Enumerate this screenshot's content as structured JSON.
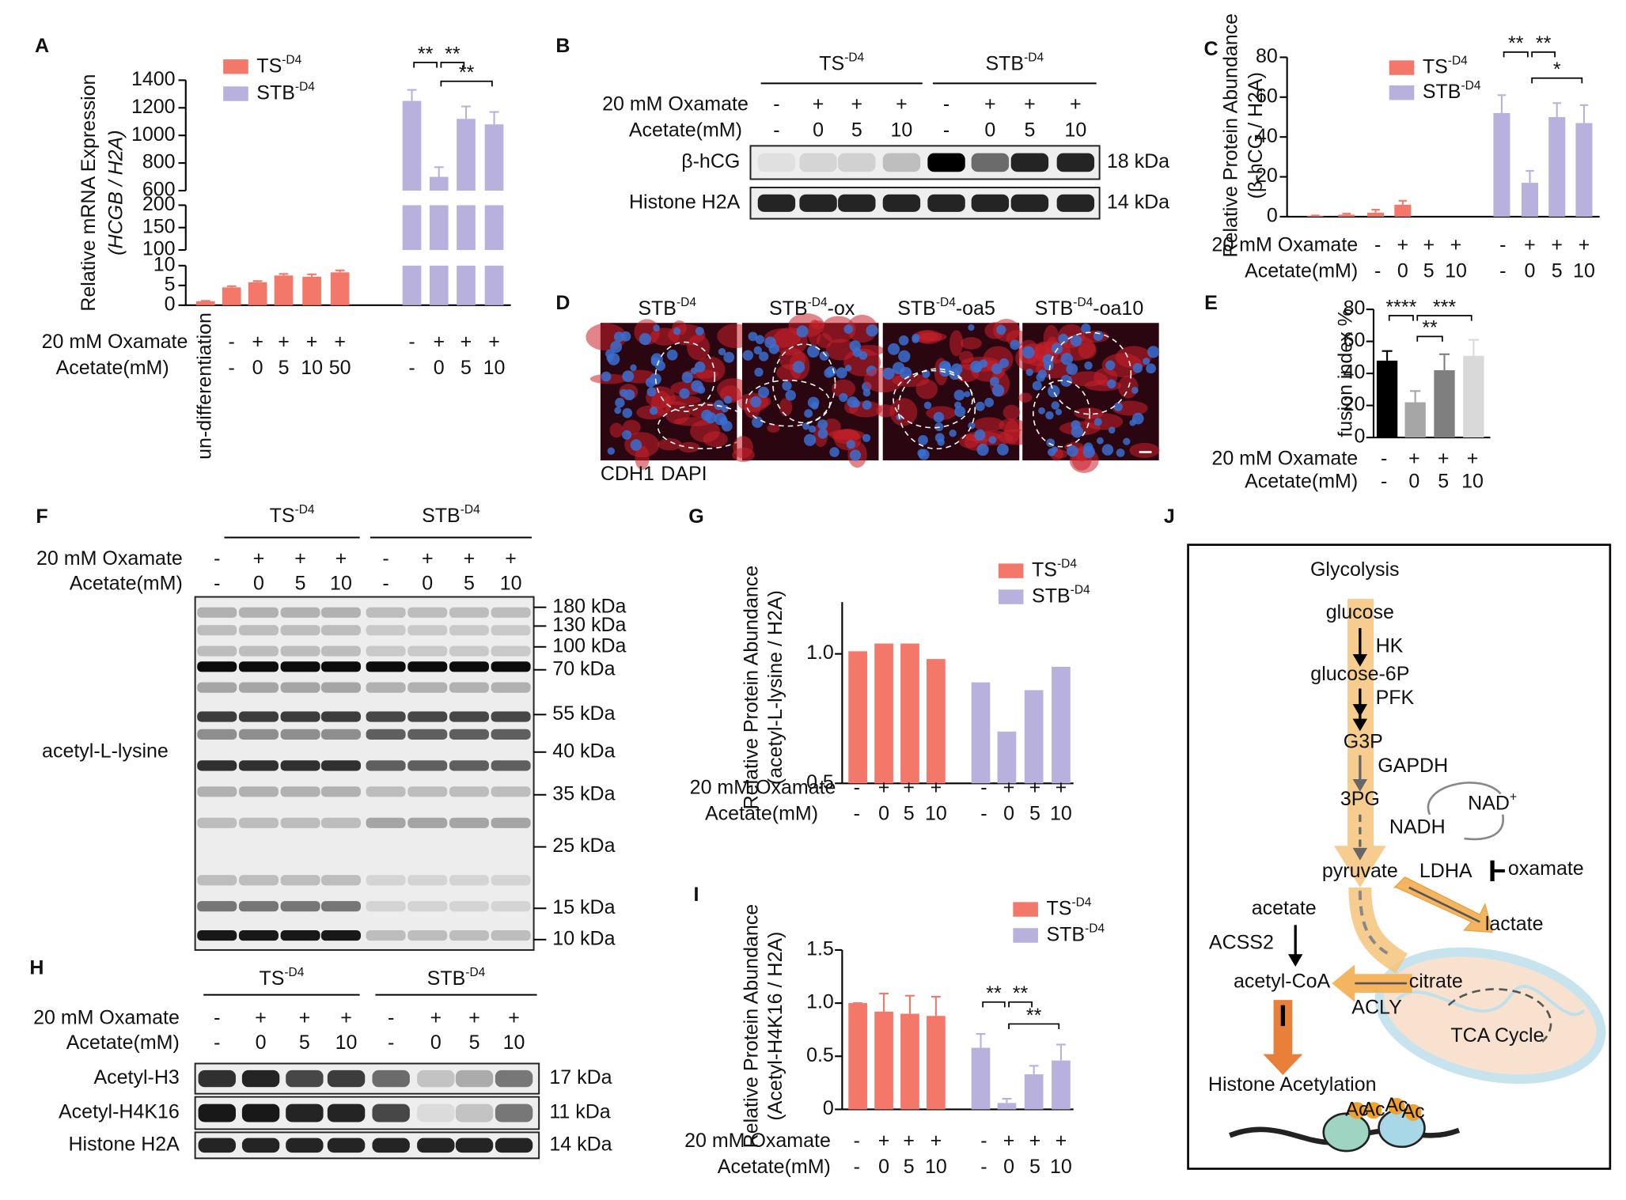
{
  "panel_labels": [
    "A",
    "B",
    "C",
    "D",
    "E",
    "F",
    "G",
    "H",
    "I",
    "J"
  ],
  "chart_data": [
    {
      "type": "bar",
      "y_label": [
        "Relative mRNA Expression",
        "(HCGB / H2A)"
      ],
      "categories": [
        "un-differentiation",
        null,
        null,
        null,
        null,
        null,
        null,
        null,
        null,
        null
      ],
      "series": [
        {
          "name": {
            "text": "TS",
            "sup": "-D4"
          },
          "color": "#f4786a",
          "values": [
            1,
            4.5,
            5.8,
            7.5,
            7.2,
            8.3,
            null,
            null,
            null,
            null
          ],
          "errors": [
            0.1,
            0.3,
            0.3,
            0.4,
            0.6,
            0.5,
            null,
            null,
            null,
            null
          ]
        },
        {
          "name": {
            "text": "STB",
            "sup": "-D4"
          },
          "color": "#b8b1de",
          "values": [
            null,
            null,
            null,
            null,
            null,
            null,
            1250,
            700,
            1120,
            1080
          ],
          "errors": [
            null,
            null,
            null,
            null,
            null,
            null,
            80,
            70,
            90,
            90
          ]
        }
      ],
      "y_segments": [
        {
          "ylim": [
            0,
            10
          ],
          "yticks": [
            0,
            5,
            10
          ]
        },
        {
          "ylim": [
            100,
            200
          ],
          "yticks": [
            100,
            150,
            200
          ]
        },
        {
          "ylim": [
            600,
            1400
          ],
          "yticks": [
            600,
            800,
            1000,
            1200,
            1400
          ]
        }
      ],
      "conditions": [
        {
          "label": "20 mM Oxamate",
          "color": "#2b4593",
          "values": [
            null,
            "-",
            "+",
            "+",
            "+",
            "+",
            "-",
            "+",
            "+",
            "+"
          ]
        },
        {
          "label": "Acetate(mM)",
          "color": "#c8262b",
          "values": [
            null,
            "-",
            "0",
            "5",
            "10",
            "50",
            "-",
            "0",
            "5",
            "10"
          ]
        }
      ],
      "annotations": [
        "**",
        "**",
        "**"
      ]
    },
    {
      "type": "bar",
      "y_label": [
        "Relative Protein Abundance",
        "(β-hCG / H2A)"
      ],
      "series": [
        {
          "name": {
            "text": "TS",
            "sup": "-D4"
          },
          "color": "#f4786a",
          "values": [
            0.3,
            1,
            2,
            6
          ],
          "errors": [
            0.3,
            0.5,
            1.5,
            2
          ]
        },
        {
          "name": {
            "text": "STB",
            "sup": "-D4"
          },
          "color": "#b8b1de",
          "values": [
            null,
            null,
            null,
            null,
            52,
            17,
            50,
            47
          ],
          "errors": [
            null,
            null,
            null,
            null,
            9,
            6,
            7,
            9
          ]
        }
      ],
      "ylim": [
        0,
        80
      ],
      "yticks": [
        0,
        20,
        40,
        60,
        80
      ],
      "conditions": [
        {
          "label": "20 mM Oxamate",
          "color": "#2b4593",
          "values": [
            "-",
            "+",
            "+",
            "+",
            "-",
            "+",
            "+",
            "+"
          ]
        },
        {
          "label": "Acetate(mM)",
          "color": "#c8262b",
          "values": [
            "-",
            "0",
            "5",
            "10",
            "-",
            "0",
            "5",
            "10"
          ]
        }
      ],
      "annotations": [
        "**",
        "**",
        "*"
      ]
    },
    {
      "type": "bar",
      "y_label": [
        "fusion index %"
      ],
      "series": [
        {
          "colors": [
            "#000000",
            "#a6a6a6",
            "#7f7f7f",
            "#d9d9d9"
          ],
          "values": [
            48,
            22,
            42,
            51
          ],
          "errors": [
            6,
            7,
            10,
            10
          ]
        }
      ],
      "ylim": [
        0,
        80
      ],
      "yticks": [
        0,
        20,
        40,
        60,
        80
      ],
      "conditions": [
        {
          "label": "20 mM Oxamate",
          "color": "#2b4593",
          "values": [
            "-",
            "+",
            "+",
            "+"
          ]
        },
        {
          "label": "Acetate(mM)",
          "color": "#c8262b",
          "values": [
            "-",
            "0",
            "5",
            "10"
          ]
        }
      ],
      "annotations": [
        "****",
        "***",
        "**"
      ]
    },
    {
      "type": "bar",
      "y_label": [
        "Relative Protein Abundance",
        "(acetyl-L-lysine / H2A)"
      ],
      "series": [
        {
          "name": {
            "text": "TS",
            "sup": "-D4"
          },
          "color": "#f4786a",
          "values": [
            1.01,
            1.04,
            1.04,
            0.98
          ]
        },
        {
          "name": {
            "text": "STB",
            "sup": "-D4"
          },
          "color": "#b8b1de",
          "values": [
            null,
            null,
            null,
            null,
            0.89,
            0.7,
            0.86,
            0.95
          ]
        }
      ],
      "ylim": [
        0.5,
        1.2
      ],
      "yticks": [
        0.5,
        {
          "value": 1,
          "label": "1.0"
        }
      ],
      "conditions": [
        {
          "label": "20 mM Oxamate",
          "color": "#2b4593",
          "values": [
            "-",
            "+",
            "+",
            "+",
            "-",
            "+",
            "+",
            "+"
          ]
        },
        {
          "label": "Acetate(mM)",
          "color": "#c8262b",
          "values": [
            "-",
            "0",
            "5",
            "10",
            "-",
            "0",
            "5",
            "10"
          ]
        }
      ]
    },
    {
      "type": "bar",
      "y_label": [
        "Relative Protein Abundance",
        "(Acetyl-H4K16 / H2A)"
      ],
      "series": [
        {
          "name": {
            "text": "TS",
            "sup": "-D4"
          },
          "color": "#f4786a",
          "values": [
            1,
            0.92,
            0.9,
            0.88
          ],
          "errors": [
            0,
            0.17,
            0.17,
            0.18
          ]
        },
        {
          "name": {
            "text": "STB",
            "sup": "-D4"
          },
          "color": "#b8b1de",
          "values": [
            null,
            null,
            null,
            null,
            0.58,
            0.06,
            0.33,
            0.46
          ],
          "errors": [
            null,
            null,
            null,
            null,
            0.13,
            0.04,
            0.08,
            0.15
          ]
        }
      ],
      "ylim": [
        0,
        1.5
      ],
      "yticks": [
        0,
        0.5,
        {
          "value": 1,
          "label": "1.0"
        },
        1.5
      ],
      "conditions": [
        {
          "label": "20 mM Oxamate",
          "color": "#2b4593",
          "values": [
            "-",
            "+",
            "+",
            "+",
            "-",
            "+",
            "+",
            "+"
          ]
        },
        {
          "label": "Acetate(mM)",
          "color": "#c8262b",
          "values": [
            "-",
            "0",
            "5",
            "10",
            "-",
            "0",
            "5",
            "10"
          ]
        }
      ],
      "annotations": [
        "**",
        "**",
        "**"
      ]
    }
  ],
  "blot_B": {
    "groups": [
      {
        "text": "TS",
        "sup": "-D4"
      },
      {
        "text": "STB",
        "sup": "-D4"
      }
    ],
    "conditions": [
      {
        "label": "20 mM Oxamate",
        "color": "#2b4593",
        "values": [
          "-",
          "+",
          "+",
          "+",
          "-",
          "+",
          "+",
          "+"
        ]
      },
      {
        "label": "Acetate(mM)",
        "color": "#c8262b",
        "values": [
          "-",
          "0",
          "5",
          "10",
          "-",
          "0",
          "5",
          "10"
        ]
      }
    ],
    "bands": [
      {
        "label": "β-hCG",
        "size": "18 kDa"
      },
      {
        "label": "Histone H2A",
        "size": "14 kDa"
      }
    ]
  },
  "images_D": {
    "labels": [
      {
        "text": "STB",
        "sup": "-D4"
      },
      {
        "text": "STB",
        "sup": "-D4",
        "after": "-ox"
      },
      {
        "text": "STB",
        "sup": "-D4",
        "after": "-oa5"
      },
      {
        "text": "STB",
        "sup": "-D4",
        "after": "-oa10"
      }
    ],
    "legend": [
      {
        "text": "CDH1",
        "color": "#e8401c"
      },
      {
        "text": "DAPI",
        "color": "#2a6fd6"
      }
    ]
  },
  "blot_F": {
    "groups": [
      {
        "text": "TS",
        "sup": "-D4"
      },
      {
        "text": "STB",
        "sup": "-D4"
      }
    ],
    "conditions": [
      {
        "label": "20 mM Oxamate",
        "color": "#2b4593",
        "values": [
          "-",
          "+",
          "+",
          "+",
          "-",
          "+",
          "+",
          "+"
        ]
      },
      {
        "label": "Acetate(mM)",
        "color": "#c8262b",
        "values": [
          "-",
          "0",
          "5",
          "10",
          "-",
          "0",
          "5",
          "10"
        ]
      }
    ],
    "label": "acetyl-L-lysine",
    "markers": [
      "180 kDa",
      "130 kDa",
      "100 kDa",
      "70 kDa",
      "55 kDa",
      "40 kDa",
      "35 kDa",
      "25 kDa",
      "15 kDa",
      "10 kDa"
    ]
  },
  "blot_H": {
    "groups": [
      {
        "text": "TS",
        "sup": "-D4"
      },
      {
        "text": "STB",
        "sup": "-D4"
      }
    ],
    "conditions": [
      {
        "label": "20 mM Oxamate",
        "color": "#2b4593",
        "values": [
          "-",
          "+",
          "+",
          "+",
          "-",
          "+",
          "+",
          "+"
        ]
      },
      {
        "label": "Acetate(mM)",
        "color": "#c8262b",
        "values": [
          "-",
          "0",
          "5",
          "10",
          "-",
          "0",
          "5",
          "10"
        ]
      }
    ],
    "bands": [
      {
        "label": "Acetyl-H3",
        "size": "17 kDa"
      },
      {
        "label": "Acetyl-H4K16",
        "size": "11 kDa"
      },
      {
        "label": "Histone H2A",
        "size": "14 kDa"
      }
    ]
  },
  "diagram_J": {
    "labels": [
      "Glycolysis",
      "glucose",
      "HK",
      "glucose-6P",
      "PFK",
      "G3P",
      "GAPDH",
      "3PG",
      "NADH",
      {
        "text": "NAD",
        "sup": "+"
      },
      "pyruvate",
      "LDHA",
      "oxamate",
      "lactate",
      "acetate",
      "ACSS2",
      "acetyl-CoA",
      "citrate",
      "ACLY",
      "TCA Cycle",
      "Histone Acetylation",
      "Ac",
      "Ac",
      "Ac",
      "Ac"
    ]
  }
}
